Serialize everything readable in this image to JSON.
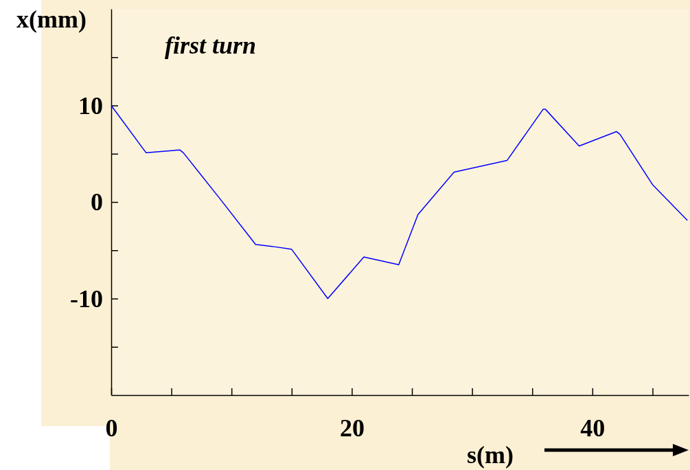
{
  "chart_data": {
    "type": "line",
    "xlabel": "s(m)",
    "ylabel": "x(mm)",
    "annotations": [
      "first turn"
    ],
    "x": [
      0,
      2.9,
      5.7,
      6.0,
      9.0,
      12.0,
      13.4,
      15.0,
      18.0,
      21.0,
      23.9,
      25.5,
      28.5,
      32.9,
      35.9,
      36.1,
      38.9,
      42.0,
      42.3,
      45.0,
      47.9
    ],
    "series": [
      {
        "color": "#0000ff",
        "values": [
          10,
          5.1,
          5.4,
          5.1,
          0.4,
          -4.4,
          -4.6,
          -4.9,
          -10,
          -5.7,
          -6.5,
          -1.3,
          3.1,
          4.3,
          9.6,
          9.6,
          5.8,
          7.3,
          7.0,
          1.8,
          -1.9
        ]
      }
    ],
    "xlim": [
      0,
      48
    ],
    "ylim": [
      -20,
      20
    ],
    "xticks": [
      0,
      {
        "value": 5,
        "label": null
      },
      {
        "value": 10,
        "label": null
      },
      {
        "value": 15,
        "label": null
      },
      20,
      {
        "value": 25,
        "label": null
      },
      {
        "value": 30,
        "label": null
      },
      {
        "value": 35,
        "label": null
      },
      40,
      {
        "value": 45,
        "label": null
      }
    ],
    "yticks": [
      {
        "value": -15,
        "label": null
      },
      -10,
      {
        "value": -5,
        "label": null
      },
      0,
      {
        "value": 5,
        "label": null
      },
      10,
      {
        "value": 15,
        "label": null
      }
    ],
    "grid": false,
    "marker": "none",
    "line_style": "solid"
  }
}
